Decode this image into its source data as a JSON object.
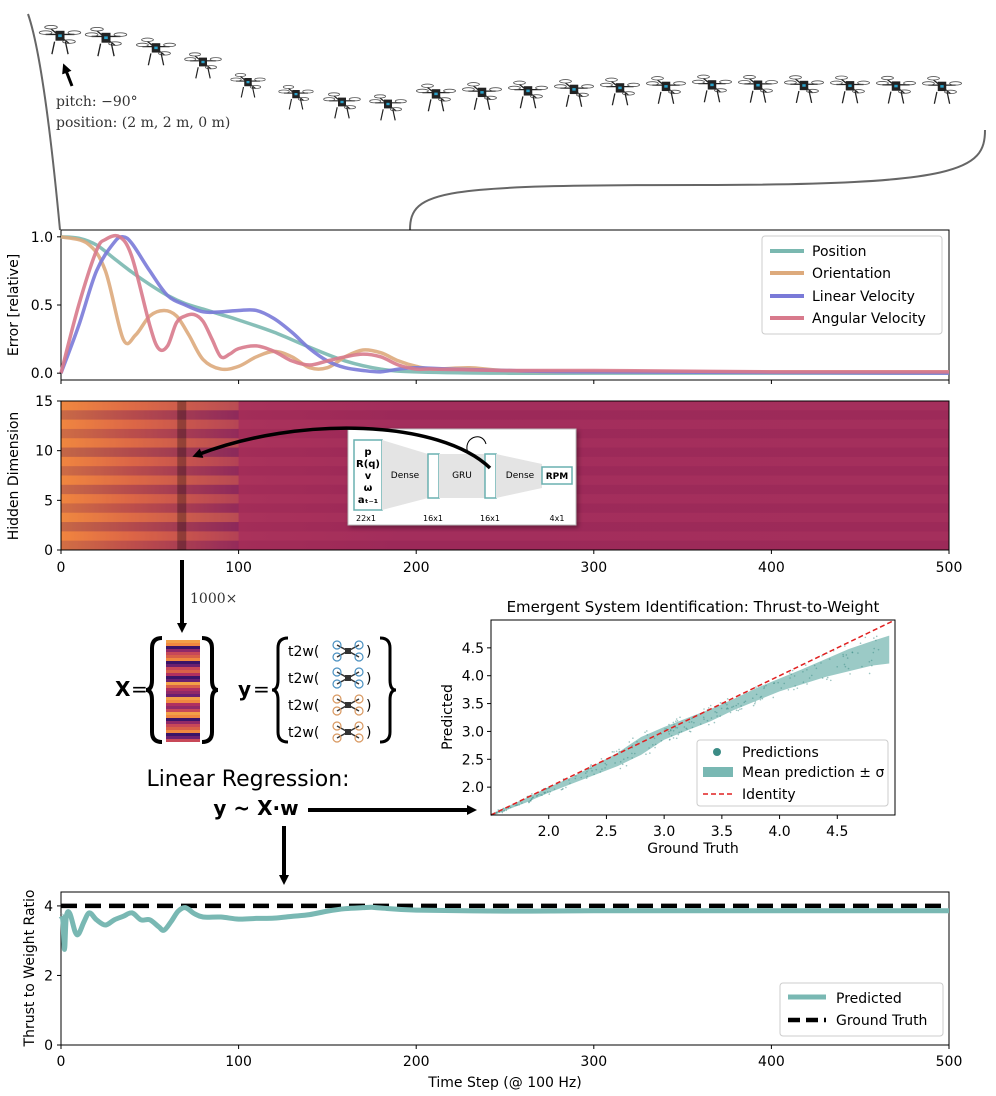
{
  "colors": {
    "position": "#7ab8b0",
    "orientation": "#ddaa7c",
    "linear_velocity": "#7a7ad8",
    "angular_velocity": "#d87a8c",
    "predicted": "#79b8b3",
    "ground_truth": "#000000",
    "identity": "#e02020",
    "scatter": "#3c8c86"
  },
  "trajectory": {
    "annotation_pitch": "pitch: −90°",
    "annotation_position": "position: (2 m, 2 m, 0 m)"
  },
  "chart_data": [
    {
      "id": "error",
      "type": "line",
      "ylabel": "Error [relative]",
      "xlim": [
        0,
        500
      ],
      "ylim": [
        -0.05,
        1.05
      ],
      "yticks": [
        "0.0",
        "0.5",
        "1.0"
      ],
      "legend_position": "top-right",
      "series": [
        {
          "name": "Position",
          "x": [
            0,
            10,
            20,
            30,
            40,
            50,
            60,
            70,
            80,
            90,
            100,
            120,
            140,
            160,
            180,
            200,
            250,
            300,
            400,
            500
          ],
          "y": [
            1.0,
            0.99,
            0.94,
            0.84,
            0.74,
            0.65,
            0.57,
            0.51,
            0.47,
            0.43,
            0.39,
            0.3,
            0.19,
            0.09,
            0.03,
            0.01,
            0.0,
            0.0,
            0.0,
            0.0
          ]
        },
        {
          "name": "Orientation",
          "x": [
            0,
            15,
            25,
            35,
            42,
            50,
            58,
            65,
            72,
            80,
            90,
            100,
            110,
            120,
            130,
            140,
            150,
            160,
            170,
            180,
            190,
            200,
            210,
            230,
            250,
            300,
            500
          ],
          "y": [
            1.0,
            0.95,
            0.75,
            0.25,
            0.28,
            0.42,
            0.46,
            0.42,
            0.28,
            0.1,
            0.03,
            0.05,
            0.12,
            0.16,
            0.12,
            0.04,
            0.04,
            0.12,
            0.17,
            0.15,
            0.09,
            0.05,
            0.03,
            0.04,
            0.02,
            0.01,
            0.01
          ]
        },
        {
          "name": "Linear Velocity",
          "x": [
            0,
            10,
            20,
            30,
            35,
            40,
            50,
            60,
            70,
            80,
            90,
            100,
            110,
            120,
            130,
            140,
            150,
            160,
            170,
            180,
            190,
            200,
            220,
            250,
            300,
            500
          ],
          "y": [
            0.0,
            0.35,
            0.75,
            0.96,
            1.0,
            0.95,
            0.75,
            0.57,
            0.5,
            0.45,
            0.45,
            0.46,
            0.46,
            0.4,
            0.3,
            0.18,
            0.09,
            0.04,
            0.02,
            0.01,
            0.03,
            0.04,
            0.03,
            0.02,
            0.01,
            0.0
          ]
        },
        {
          "name": "Angular Velocity",
          "x": [
            0,
            10,
            20,
            25,
            33,
            40,
            50,
            55,
            60,
            65,
            70,
            75,
            80,
            85,
            90,
            95,
            100,
            110,
            120,
            130,
            140,
            150,
            160,
            170,
            180,
            190,
            200,
            210,
            250,
            300,
            400,
            500
          ],
          "y": [
            0.0,
            0.5,
            0.9,
            0.98,
            1.0,
            0.85,
            0.35,
            0.18,
            0.2,
            0.37,
            0.42,
            0.43,
            0.38,
            0.25,
            0.12,
            0.14,
            0.18,
            0.2,
            0.16,
            0.09,
            0.06,
            0.09,
            0.12,
            0.14,
            0.12,
            0.06,
            0.03,
            0.03,
            0.02,
            0.02,
            0.01,
            0.01
          ]
        }
      ]
    },
    {
      "id": "hidden",
      "type": "heatmap",
      "ylabel": "Hidden Dimension",
      "xlim": [
        0,
        500
      ],
      "ylim": [
        0,
        15
      ],
      "xticks": [
        "0",
        "100",
        "200",
        "300",
        "400",
        "500"
      ],
      "yticks": [
        "0",
        "5",
        "10",
        "15"
      ],
      "highlight_x": 68,
      "rows": 16,
      "row_values": [
        0.62,
        0.45,
        0.55,
        0.48,
        0.6,
        0.42,
        0.52,
        0.47,
        0.58,
        0.44,
        0.53,
        0.49,
        0.61,
        0.43,
        0.51,
        0.5
      ]
    },
    {
      "id": "sysid",
      "type": "scatter",
      "title": "Emergent System Identification: Thrust-to-Weight",
      "xlabel": "Ground Truth",
      "ylabel": "Predicted",
      "xlim": [
        1.5,
        5.0
      ],
      "ylim": [
        1.5,
        5.0
      ],
      "xticks": [
        "2.0",
        "2.5",
        "3.0",
        "3.5",
        "4.0",
        "4.5"
      ],
      "yticks": [
        "2.0",
        "2.5",
        "3.0",
        "3.5",
        "4.0",
        "4.5"
      ],
      "legend_position": "bottom-right",
      "legend": [
        "Predictions",
        "Mean prediction ± σ",
        "Identity"
      ],
      "band": {
        "x": [
          1.5,
          1.8,
          2.0,
          2.2,
          2.4,
          2.6,
          2.8,
          3.0,
          3.2,
          3.4,
          3.6,
          3.8,
          4.0,
          4.2,
          4.4,
          4.6,
          4.8,
          4.95
        ],
        "lower": [
          1.48,
          1.72,
          1.9,
          2.06,
          2.22,
          2.38,
          2.58,
          2.85,
          3.02,
          3.18,
          3.38,
          3.55,
          3.72,
          3.85,
          3.98,
          4.08,
          4.18,
          4.22
        ],
        "upper": [
          1.52,
          1.8,
          2.0,
          2.18,
          2.4,
          2.62,
          2.9,
          3.08,
          3.24,
          3.4,
          3.58,
          3.78,
          3.95,
          4.12,
          4.3,
          4.48,
          4.62,
          4.72
        ]
      }
    },
    {
      "id": "t2w",
      "type": "line",
      "xlabel": "Time Step (@ 100 Hz)",
      "ylabel": "Thrust to Weight Ratio",
      "xlim": [
        0,
        500
      ],
      "ylim": [
        0,
        4.4
      ],
      "xticks": [
        "0",
        "100",
        "200",
        "300",
        "400",
        "500"
      ],
      "yticks": [
        "0",
        "2",
        "4"
      ],
      "legend_position": "bottom-right",
      "series": [
        {
          "name": "Predicted",
          "x": [
            0,
            1,
            2,
            3,
            5,
            8,
            10,
            13,
            16,
            20,
            25,
            30,
            35,
            40,
            45,
            50,
            55,
            58,
            62,
            66,
            70,
            75,
            80,
            90,
            100,
            110,
            120,
            130,
            140,
            150,
            160,
            170,
            175,
            180,
            200,
            250,
            300,
            400,
            500
          ],
          "y": [
            3.7,
            3.6,
            2.75,
            3.7,
            3.78,
            3.25,
            3.2,
            3.55,
            3.8,
            3.6,
            3.45,
            3.6,
            3.7,
            3.8,
            3.6,
            3.6,
            3.4,
            3.3,
            3.55,
            3.85,
            3.95,
            3.78,
            3.68,
            3.68,
            3.62,
            3.64,
            3.65,
            3.7,
            3.75,
            3.85,
            3.92,
            3.95,
            3.96,
            3.94,
            3.88,
            3.85,
            3.86,
            3.86,
            3.86
          ]
        },
        {
          "name": "Ground Truth",
          "x": [
            0,
            500
          ],
          "y": [
            4.0,
            4.0
          ]
        }
      ]
    }
  ],
  "network": {
    "inputs": [
      "p",
      "R(q)",
      "v",
      "ω",
      "aₜ₋₁"
    ],
    "dense1": "Dense",
    "gru": "GRU",
    "dense2": "Dense",
    "output": "RPM",
    "dim_in": "22x1",
    "dim_16a": "16x1",
    "dim_16b": "16x1",
    "dim_out": "4x1"
  },
  "regression": {
    "multiplier": "1000×",
    "x_label": "X",
    "y_label": "y",
    "eq_sign": "=",
    "t2w_items": [
      "t2w(",
      "t2w(",
      "t2w(",
      "t2w("
    ],
    "close_paren": ")",
    "title": "Linear Regression:",
    "formula": "y ~ X·w"
  }
}
